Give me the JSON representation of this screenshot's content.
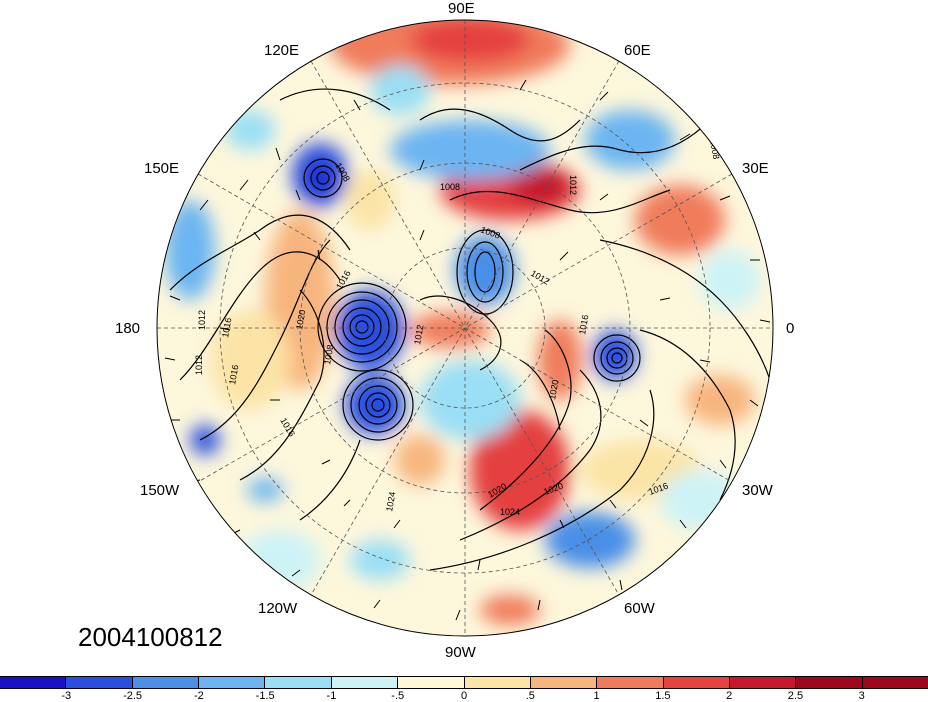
{
  "timestamp": "2004100812",
  "longitude_labels": {
    "e90": "90E",
    "e60": "60E",
    "e30": "30E",
    "zero": "0",
    "w30": "30W",
    "w60": "60W",
    "w90": "90W",
    "w120": "120W",
    "w150": "150W",
    "d180": "180",
    "e150": "150E",
    "e120": "120E"
  },
  "colorbar": {
    "colors": [
      "#1b10c8",
      "#2a4fe0",
      "#4a8fe8",
      "#6cb5f2",
      "#9adff5",
      "#cdf3f6",
      "#fdf9d6",
      "#fbe4a6",
      "#f7b57e",
      "#f07b5c",
      "#e4413f",
      "#c6182a",
      "#a0061c"
    ],
    "tick_labels": [
      "-3",
      "-2.5",
      "-2",
      "-1.5",
      "-1",
      "-.5",
      "0",
      ".5",
      "1",
      "1.5",
      "2",
      "2.5",
      "3"
    ]
  },
  "contour_labels": [
    "1008",
    "1012",
    "1008",
    "1008",
    "1012",
    "1016",
    "1020",
    "1016",
    "1008",
    "1012",
    "1016",
    "1020",
    "1024",
    "1020",
    "1016",
    "1012",
    "1012",
    "1016",
    "1020",
    "1024",
    "1008",
    "1016"
  ]
}
